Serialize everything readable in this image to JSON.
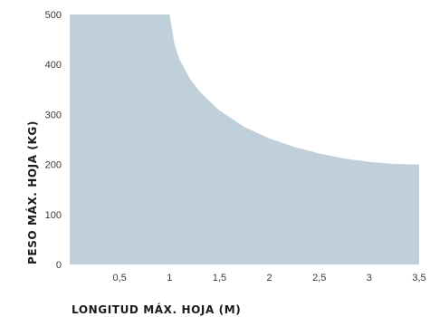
{
  "chart_data": {
    "type": "area",
    "title": "",
    "xlabel": "LONGITUD MÁX. HOJA (M)",
    "ylabel": "PESO MÁX. HOJA (KG)",
    "xlim": [
      0,
      3.5
    ],
    "ylim": [
      0,
      500
    ],
    "x_ticks": [
      "0,5",
      "1",
      "1,5",
      "2",
      "2,5",
      "3",
      "3,5"
    ],
    "x_tick_values": [
      0.5,
      1,
      1.5,
      2,
      2.5,
      3,
      3.5
    ],
    "y_ticks": [
      "0",
      "100",
      "200",
      "300",
      "400",
      "500"
    ],
    "y_tick_values": [
      0,
      100,
      200,
      300,
      400,
      500
    ],
    "grid": false,
    "fill_color": "#bfd0da",
    "series": [
      {
        "x": [
          0,
          1,
          1.05,
          1.1,
          1.2,
          1.3,
          1.5,
          1.75,
          2,
          2.25,
          2.5,
          2.75,
          3,
          3.25,
          3.5
        ],
        "values": [
          500,
          500,
          440,
          410,
          373,
          346,
          308,
          275,
          252,
          235,
          222,
          212,
          205,
          201,
          200
        ]
      }
    ]
  }
}
